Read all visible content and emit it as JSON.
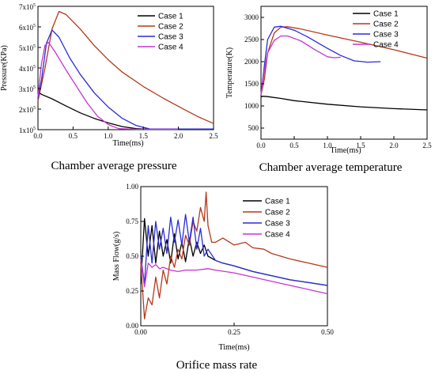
{
  "colors": {
    "case1": "#000000",
    "case2": "#b5381c",
    "case3": "#2a2adc",
    "case4": "#c436d4"
  },
  "chart_data": [
    {
      "id": "pressure",
      "type": "line",
      "caption": "Chamber average pressure",
      "xlabel": "Time(ms)",
      "ylabel": "Pressure(KPa)",
      "xlim": [
        0,
        2.5
      ],
      "ylim": [
        1.0,
        7.0
      ],
      "xticks": [
        {
          "v": 0.0,
          "t": "0.0"
        },
        {
          "v": 0.5,
          "t": "0.5"
        },
        {
          "v": 1.0,
          "t": "1.0"
        },
        {
          "v": 1.5,
          "t": "1.5"
        },
        {
          "v": 2.0,
          "t": "2.0"
        },
        {
          "v": 2.5,
          "t": "2.5"
        }
      ],
      "yticks": [
        {
          "v": 1,
          "t": "1x10",
          "e": "5"
        },
        {
          "v": 2,
          "t": "2x10",
          "e": "5"
        },
        {
          "v": 3,
          "t": "3x10",
          "e": "5"
        },
        {
          "v": 4,
          "t": "4x10",
          "e": "5"
        },
        {
          "v": 5,
          "t": "5x10",
          "e": "5"
        },
        {
          "v": 6,
          "t": "6x10",
          "e": "5"
        },
        {
          "v": 7,
          "t": "7x10",
          "e": "5"
        }
      ],
      "series": [
        {
          "name": "Case 1",
          "color_key": "case1",
          "x": [
            0,
            0.05,
            0.2,
            0.4,
            0.6,
            0.8,
            1.0,
            1.2,
            1.4,
            1.5,
            2.0,
            2.5
          ],
          "y": [
            2.85,
            2.72,
            2.5,
            2.15,
            1.82,
            1.55,
            1.33,
            1.15,
            1.05,
            1.03,
            1.03,
            1.03
          ]
        },
        {
          "name": "Case 2",
          "color_key": "case2",
          "x": [
            0,
            0.1,
            0.2,
            0.3,
            0.4,
            0.6,
            0.8,
            1.0,
            1.2,
            1.5,
            1.8,
            2.1,
            2.3,
            2.5
          ],
          "y": [
            2.4,
            4.0,
            5.9,
            6.75,
            6.6,
            5.9,
            5.1,
            4.4,
            3.8,
            3.1,
            2.5,
            1.95,
            1.6,
            1.3
          ]
        },
        {
          "name": "Case 3",
          "color_key": "case3",
          "x": [
            0,
            0.05,
            0.12,
            0.2,
            0.3,
            0.45,
            0.6,
            0.8,
            1.0,
            1.2,
            1.4,
            1.6,
            2.0,
            2.5
          ],
          "y": [
            2.5,
            3.4,
            5.2,
            5.85,
            5.5,
            4.5,
            3.7,
            2.8,
            2.1,
            1.55,
            1.2,
            1.03,
            1.03,
            1.03
          ]
        },
        {
          "name": "Case 4",
          "color_key": "case4",
          "x": [
            0,
            0.05,
            0.1,
            0.15,
            0.25,
            0.4,
            0.55,
            0.7,
            0.85,
            1.0,
            1.15,
            1.4,
            2.0
          ],
          "y": [
            2.6,
            4.2,
            5.1,
            5.25,
            4.75,
            3.9,
            3.1,
            2.3,
            1.65,
            1.25,
            1.05,
            1.02,
            1.02
          ]
        }
      ],
      "legend_position": "top-right"
    },
    {
      "id": "temperature",
      "type": "line",
      "caption": "Chamber average temperature",
      "xlabel": "Time(ms)",
      "ylabel": "Temperature(K)",
      "xlim": [
        0,
        2.5
      ],
      "ylim": [
        250,
        3250
      ],
      "xticks": [
        {
          "v": 0.0,
          "t": "0.0"
        },
        {
          "v": 0.5,
          "t": "0.5"
        },
        {
          "v": 1.0,
          "t": "1.0"
        },
        {
          "v": 1.5,
          "t": "1.5"
        },
        {
          "v": 2.0,
          "t": "2.0"
        },
        {
          "v": 2.5,
          "t": "2.5"
        }
      ],
      "yticks": [
        {
          "v": 500,
          "t": "500"
        },
        {
          "v": 1000,
          "t": "1000"
        },
        {
          "v": 1500,
          "t": "1500"
        },
        {
          "v": 2000,
          "t": "2000"
        },
        {
          "v": 2500,
          "t": "2500"
        },
        {
          "v": 3000,
          "t": "3000"
        }
      ],
      "series": [
        {
          "name": "Case 1",
          "color_key": "case1",
          "x": [
            0,
            0.02,
            0.1,
            0.3,
            0.5,
            1.0,
            1.5,
            2.0,
            2.5
          ],
          "y": [
            1200,
            1220,
            1210,
            1170,
            1120,
            1040,
            980,
            940,
            910
          ]
        },
        {
          "name": "Case 2",
          "color_key": "case2",
          "x": [
            0,
            0.05,
            0.1,
            0.2,
            0.3,
            0.4,
            0.6,
            1.0,
            1.5,
            2.0,
            2.5
          ],
          "y": [
            1250,
            1600,
            2200,
            2650,
            2780,
            2790,
            2740,
            2600,
            2440,
            2270,
            2080
          ]
        },
        {
          "name": "Case 3",
          "color_key": "case3",
          "x": [
            0,
            0.05,
            0.1,
            0.2,
            0.3,
            0.5,
            0.7,
            1.0,
            1.2,
            1.4,
            1.6,
            1.8
          ],
          "y": [
            1250,
            1900,
            2500,
            2780,
            2800,
            2710,
            2560,
            2300,
            2140,
            2020,
            1990,
            2000
          ]
        },
        {
          "name": "Case 4",
          "color_key": "case4",
          "x": [
            0,
            0.05,
            0.1,
            0.2,
            0.3,
            0.4,
            0.6,
            0.8,
            1.0,
            1.1,
            1.2
          ],
          "y": [
            1250,
            1800,
            2200,
            2480,
            2580,
            2580,
            2470,
            2280,
            2110,
            2090,
            2100
          ]
        }
      ],
      "legend_position": "top-right"
    },
    {
      "id": "massflow",
      "type": "line",
      "caption": "Orifice mass rate",
      "xlabel": "Time(ms)",
      "ylabel": "Mass Flow(g/s)",
      "xlim": [
        0,
        0.5
      ],
      "ylim": [
        0,
        1.0
      ],
      "xticks": [
        {
          "v": 0.0,
          "t": "0.00"
        },
        {
          "v": 0.25,
          "t": "0.25"
        },
        {
          "v": 0.5,
          "t": "0.50"
        }
      ],
      "yticks": [
        {
          "v": 0.0,
          "t": "0.00"
        },
        {
          "v": 0.25,
          "t": "0.25"
        },
        {
          "v": 0.5,
          "t": "0.50"
        },
        {
          "v": 0.75,
          "t": "0.75"
        },
        {
          "v": 1.0,
          "t": "1.00"
        }
      ],
      "series": [
        {
          "name": "Case 1",
          "color_key": "case1",
          "x": [
            0.0,
            0.01,
            0.02,
            0.03,
            0.04,
            0.05,
            0.06,
            0.07,
            0.08,
            0.09,
            0.1,
            0.11,
            0.12,
            0.13,
            0.14,
            0.15,
            0.16,
            0.17,
            0.18,
            0.2,
            0.22,
            0.25,
            0.3,
            0.35,
            0.4,
            0.45,
            0.5
          ],
          "y": [
            0.3,
            0.77,
            0.5,
            0.72,
            0.45,
            0.68,
            0.5,
            0.62,
            0.45,
            0.66,
            0.48,
            0.6,
            0.46,
            0.63,
            0.5,
            0.6,
            0.52,
            0.58,
            0.5,
            0.47,
            0.45,
            0.43,
            0.39,
            0.36,
            0.33,
            0.31,
            0.29
          ]
        },
        {
          "name": "Case 2",
          "color_key": "case2",
          "x": [
            0.0,
            0.01,
            0.02,
            0.03,
            0.04,
            0.05,
            0.06,
            0.07,
            0.08,
            0.09,
            0.1,
            0.11,
            0.12,
            0.13,
            0.14,
            0.15,
            0.16,
            0.17,
            0.175,
            0.18,
            0.19,
            0.2,
            0.22,
            0.25,
            0.28,
            0.3,
            0.33,
            0.35,
            0.4,
            0.45,
            0.5
          ],
          "y": [
            0.45,
            0.05,
            0.2,
            0.15,
            0.35,
            0.2,
            0.4,
            0.3,
            0.5,
            0.42,
            0.55,
            0.48,
            0.65,
            0.58,
            0.75,
            0.68,
            0.85,
            0.75,
            0.96,
            0.72,
            0.6,
            0.6,
            0.63,
            0.58,
            0.6,
            0.56,
            0.55,
            0.52,
            0.48,
            0.45,
            0.42
          ]
        },
        {
          "name": "Case 3",
          "color_key": "case3",
          "x": [
            0.0,
            0.01,
            0.02,
            0.03,
            0.04,
            0.05,
            0.06,
            0.07,
            0.08,
            0.09,
            0.1,
            0.11,
            0.12,
            0.13,
            0.14,
            0.15,
            0.16,
            0.17,
            0.18,
            0.2,
            0.22,
            0.25,
            0.3,
            0.35,
            0.4,
            0.45,
            0.5
          ],
          "y": [
            0.5,
            0.3,
            0.72,
            0.45,
            0.75,
            0.55,
            0.7,
            0.52,
            0.78,
            0.6,
            0.76,
            0.58,
            0.8,
            0.6,
            0.78,
            0.55,
            0.7,
            0.5,
            0.55,
            0.47,
            0.45,
            0.43,
            0.39,
            0.36,
            0.33,
            0.31,
            0.29
          ]
        },
        {
          "name": "Case 4",
          "color_key": "case4",
          "x": [
            0.0,
            0.01,
            0.02,
            0.03,
            0.04,
            0.05,
            0.06,
            0.08,
            0.1,
            0.12,
            0.15,
            0.18,
            0.2,
            0.25,
            0.3,
            0.35,
            0.4,
            0.45,
            0.5
          ],
          "y": [
            0.48,
            0.28,
            0.45,
            0.42,
            0.44,
            0.41,
            0.42,
            0.4,
            0.39,
            0.4,
            0.4,
            0.41,
            0.4,
            0.38,
            0.35,
            0.32,
            0.29,
            0.26,
            0.23
          ]
        }
      ],
      "legend_position": "top-right"
    }
  ]
}
